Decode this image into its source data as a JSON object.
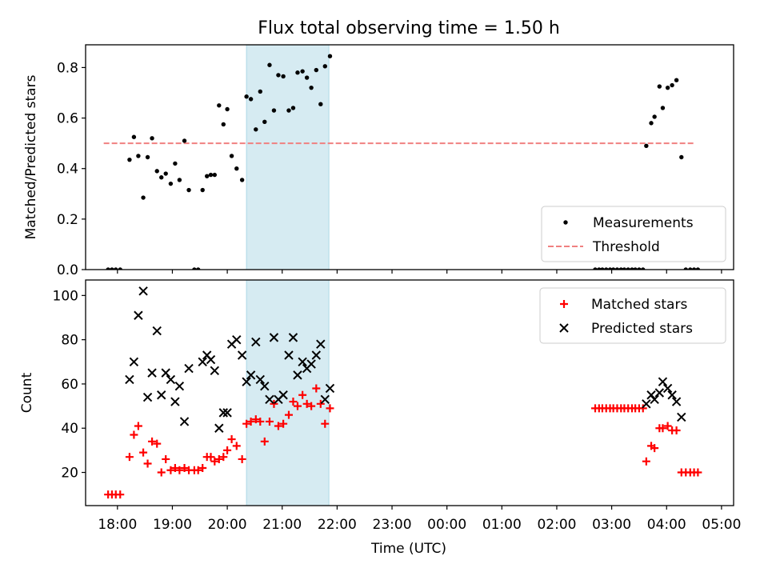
{
  "chart_data": [
    {
      "type": "scatter",
      "title": "Flux total observing time = 1.50 h",
      "xlabel": "",
      "ylabel": "Matched/Predicted stars",
      "ylim": [
        0,
        0.89
      ],
      "yticks": [
        "0.0",
        "0.2",
        "0.4",
        "0.6",
        "0.8"
      ],
      "xlim_hours": [
        17.42,
        29.22
      ],
      "highlight_hours": [
        20.35,
        21.85
      ],
      "legend_position": "lower-right",
      "legend": [
        {
          "label": "Measurements",
          "marker": "dot",
          "color": "#000000"
        },
        {
          "label": "Threshold",
          "marker": "dashed-line",
          "color": "#f08080"
        }
      ],
      "threshold": {
        "name": "Threshold",
        "y": 0.5,
        "x": [
          "17.75",
          "28.5"
        ],
        "color": "#f08080"
      },
      "series": [
        {
          "name": "Measurements",
          "color": "#000000",
          "points": [
            [
              "17.83",
              0.0
            ],
            [
              "17.9",
              0.0
            ],
            [
              "17.97",
              0.0
            ],
            [
              "18.05",
              0.0
            ],
            [
              "18.22",
              0.435
            ],
            [
              "18.3",
              0.525
            ],
            [
              "18.38",
              0.45
            ],
            [
              "18.47",
              0.285
            ],
            [
              "18.55",
              0.445
            ],
            [
              "18.63",
              0.52
            ],
            [
              "18.72",
              0.39
            ],
            [
              "18.8",
              0.365
            ],
            [
              "18.88",
              0.38
            ],
            [
              "18.97",
              0.34
            ],
            [
              "19.05",
              0.42
            ],
            [
              "19.13",
              0.355
            ],
            [
              "19.22",
              0.51
            ],
            [
              "19.3",
              0.315
            ],
            [
              "19.4",
              0.0
            ],
            [
              "19.47",
              0.0
            ],
            [
              "19.55",
              0.315
            ],
            [
              "19.63",
              0.37
            ],
            [
              "19.7",
              0.375
            ],
            [
              "19.77",
              0.375
            ],
            [
              "19.85",
              0.65
            ],
            [
              "19.93",
              0.575
            ],
            [
              "20.0",
              0.635
            ],
            [
              "20.08",
              0.45
            ],
            [
              "20.17",
              0.4
            ],
            [
              "20.27",
              0.355
            ],
            [
              "20.35",
              0.685
            ],
            [
              "20.43",
              0.675
            ],
            [
              "20.52",
              0.555
            ],
            [
              "20.6",
              0.705
            ],
            [
              "20.68",
              0.585
            ],
            [
              "20.77",
              0.81
            ],
            [
              "20.85",
              0.63
            ],
            [
              "20.93",
              0.77
            ],
            [
              "21.02",
              0.765
            ],
            [
              "21.12",
              0.63
            ],
            [
              "21.2",
              0.64
            ],
            [
              "21.28",
              0.78
            ],
            [
              "21.37",
              0.785
            ],
            [
              "21.45",
              0.76
            ],
            [
              "21.53",
              0.72
            ],
            [
              "21.62",
              0.79
            ],
            [
              "21.7",
              0.655
            ],
            [
              "21.78",
              0.805
            ],
            [
              "21.87",
              0.845
            ],
            [
              "26.7",
              0.0
            ],
            [
              "26.77",
              0.0
            ],
            [
              "26.83",
              0.0
            ],
            [
              "26.9",
              0.0
            ],
            [
              "26.97",
              0.0
            ],
            [
              "27.03",
              0.0
            ],
            [
              "27.1",
              0.0
            ],
            [
              "27.17",
              0.0
            ],
            [
              "27.23",
              0.0
            ],
            [
              "27.3",
              0.0
            ],
            [
              "27.37",
              0.0
            ],
            [
              "27.43",
              0.0
            ],
            [
              "27.5",
              0.0
            ],
            [
              "27.57",
              0.0
            ],
            [
              "27.63",
              0.49
            ],
            [
              "27.72",
              0.58
            ],
            [
              "27.78",
              0.605
            ],
            [
              "27.87",
              0.725
            ],
            [
              "27.93",
              0.64
            ],
            [
              "28.02",
              0.72
            ],
            [
              "28.1",
              0.73
            ],
            [
              "28.18",
              0.75
            ],
            [
              "28.27",
              0.445
            ],
            [
              "28.35",
              0.0
            ],
            [
              "28.43",
              0.0
            ],
            [
              "28.5",
              0.0
            ],
            [
              "28.57",
              0.0
            ]
          ]
        }
      ]
    },
    {
      "type": "scatter",
      "title": "",
      "xlabel": "Time (UTC)",
      "ylabel": "Count",
      "ylim": [
        5,
        107
      ],
      "yticks": [
        "20",
        "40",
        "60",
        "80",
        "100"
      ],
      "xlim_hours": [
        17.42,
        29.22
      ],
      "xticks": [
        "18:00",
        "19:00",
        "20:00",
        "21:00",
        "22:00",
        "23:00",
        "00:00",
        "01:00",
        "02:00",
        "03:00",
        "04:00",
        "05:00"
      ],
      "highlight_hours": [
        20.35,
        21.85
      ],
      "legend_position": "upper-right",
      "legend": [
        {
          "label": "Matched stars",
          "marker": "plus",
          "color": "#ff0000"
        },
        {
          "label": "Predicted stars",
          "marker": "x",
          "color": "#000000"
        }
      ],
      "series": [
        {
          "name": "Matched stars",
          "color": "#ff0000",
          "points": [
            [
              "17.83",
              10
            ],
            [
              "17.9",
              10
            ],
            [
              "17.97",
              10
            ],
            [
              "18.05",
              10
            ],
            [
              "18.22",
              27
            ],
            [
              "18.3",
              37
            ],
            [
              "18.38",
              41
            ],
            [
              "18.47",
              29
            ],
            [
              "18.55",
              24
            ],
            [
              "18.63",
              34
            ],
            [
              "18.72",
              33
            ],
            [
              "18.8",
              20
            ],
            [
              "18.88",
              26
            ],
            [
              "18.97",
              21
            ],
            [
              "19.05",
              22
            ],
            [
              "19.13",
              21
            ],
            [
              "19.22",
              22
            ],
            [
              "19.3",
              21
            ],
            [
              "19.4",
              21
            ],
            [
              "19.47",
              21
            ],
            [
              "19.55",
              22
            ],
            [
              "19.63",
              27
            ],
            [
              "19.7",
              27
            ],
            [
              "19.77",
              25
            ],
            [
              "19.85",
              26
            ],
            [
              "19.93",
              27
            ],
            [
              "20.0",
              30
            ],
            [
              "20.08",
              35
            ],
            [
              "20.17",
              32
            ],
            [
              "20.27",
              26
            ],
            [
              "20.35",
              42
            ],
            [
              "20.43",
              43
            ],
            [
              "20.52",
              44
            ],
            [
              "20.6",
              43
            ],
            [
              "20.68",
              34
            ],
            [
              "20.77",
              43
            ],
            [
              "20.85",
              51
            ],
            [
              "20.93",
              41
            ],
            [
              "21.02",
              42
            ],
            [
              "21.12",
              46
            ],
            [
              "21.2",
              52
            ],
            [
              "21.28",
              50
            ],
            [
              "21.37",
              55
            ],
            [
              "21.45",
              51
            ],
            [
              "21.53",
              50
            ],
            [
              "21.62",
              58
            ],
            [
              "21.7",
              51
            ],
            [
              "21.78",
              42
            ],
            [
              "21.87",
              49
            ],
            [
              "26.7",
              49
            ],
            [
              "26.77",
              49
            ],
            [
              "26.83",
              49
            ],
            [
              "26.9",
              49
            ],
            [
              "26.97",
              49
            ],
            [
              "27.03",
              49
            ],
            [
              "27.1",
              49
            ],
            [
              "27.17",
              49
            ],
            [
              "27.23",
              49
            ],
            [
              "27.3",
              49
            ],
            [
              "27.37",
              49
            ],
            [
              "27.43",
              49
            ],
            [
              "27.5",
              49
            ],
            [
              "27.57",
              49
            ],
            [
              "27.63",
              25
            ],
            [
              "27.72",
              32
            ],
            [
              "27.78",
              31
            ],
            [
              "27.87",
              40
            ],
            [
              "27.93",
              40
            ],
            [
              "28.02",
              41
            ],
            [
              "28.1",
              39
            ],
            [
              "28.18",
              39
            ],
            [
              "28.27",
              20
            ],
            [
              "28.35",
              20
            ],
            [
              "28.43",
              20
            ],
            [
              "28.5",
              20
            ],
            [
              "28.57",
              20
            ]
          ]
        },
        {
          "name": "Predicted stars",
          "color": "#000000",
          "points": [
            [
              "18.22",
              62
            ],
            [
              "18.3",
              70
            ],
            [
              "18.38",
              91
            ],
            [
              "18.47",
              102
            ],
            [
              "18.55",
              54
            ],
            [
              "18.63",
              65
            ],
            [
              "18.72",
              84
            ],
            [
              "18.8",
              55
            ],
            [
              "18.88",
              65
            ],
            [
              "18.97",
              62
            ],
            [
              "19.05",
              52
            ],
            [
              "19.13",
              59
            ],
            [
              "19.22",
              43
            ],
            [
              "19.3",
              67
            ],
            [
              "19.55",
              70
            ],
            [
              "19.63",
              73
            ],
            [
              "19.7",
              71
            ],
            [
              "19.77",
              66
            ],
            [
              "19.85",
              40
            ],
            [
              "19.93",
              47
            ],
            [
              "20.0",
              47
            ],
            [
              "20.08",
              78
            ],
            [
              "20.17",
              80
            ],
            [
              "20.27",
              73
            ],
            [
              "20.35",
              61
            ],
            [
              "20.43",
              64
            ],
            [
              "20.52",
              79
            ],
            [
              "20.6",
              62
            ],
            [
              "20.68",
              59
            ],
            [
              "20.77",
              53
            ],
            [
              "20.85",
              81
            ],
            [
              "20.93",
              53
            ],
            [
              "21.02",
              55
            ],
            [
              "21.12",
              73
            ],
            [
              "21.2",
              81
            ],
            [
              "21.28",
              64
            ],
            [
              "21.37",
              70
            ],
            [
              "21.45",
              67
            ],
            [
              "21.53",
              69
            ],
            [
              "21.62",
              73
            ],
            [
              "21.7",
              78
            ],
            [
              "21.78",
              53
            ],
            [
              "21.87",
              58
            ],
            [
              "27.63",
              51
            ],
            [
              "27.72",
              55
            ],
            [
              "27.78",
              53
            ],
            [
              "27.87",
              56
            ],
            [
              "27.93",
              61
            ],
            [
              "28.02",
              58
            ],
            [
              "28.1",
              55
            ],
            [
              "28.18",
              52
            ],
            [
              "28.27",
              45
            ]
          ]
        }
      ]
    }
  ]
}
